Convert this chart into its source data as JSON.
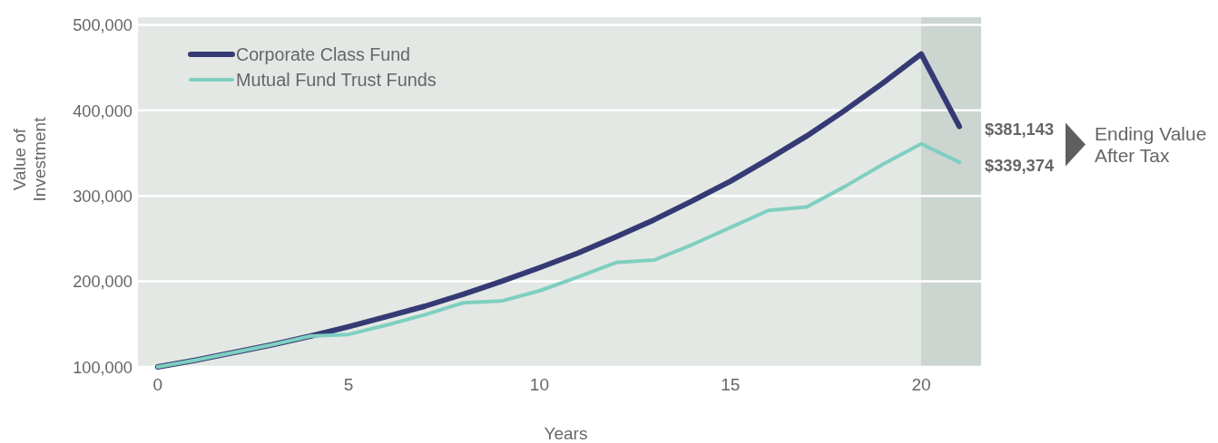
{
  "chart_data": {
    "type": "line",
    "xlabel": "Years",
    "ylabel": "Value of\nInvestment",
    "x": [
      0,
      1,
      2,
      3,
      4,
      5,
      6,
      7,
      8,
      9,
      10,
      11,
      12,
      13,
      14,
      15,
      16,
      17,
      18,
      19,
      20,
      21
    ],
    "series": [
      {
        "name": "Corporate Class Fund",
        "color": "#353a74",
        "values": [
          100000,
          108000,
          117000,
          126000,
          136000,
          147000,
          159000,
          171000,
          185000,
          200000,
          216000,
          233000,
          252000,
          272000,
          294000,
          317000,
          343000,
          370000,
          400000,
          432000,
          466000,
          381143
        ]
      },
      {
        "name": "Mutual Fund Trust Funds",
        "color": "#7fcfc0",
        "values": [
          100000,
          108000,
          117000,
          126000,
          136000,
          138000,
          149000,
          161000,
          175000,
          177000,
          189000,
          205000,
          222000,
          225000,
          243000,
          263000,
          283000,
          287000,
          311000,
          337000,
          361000,
          339374
        ]
      }
    ],
    "xlim": [
      -0.52,
      21.57
    ],
    "ylim": [
      100000,
      509000
    ],
    "xticks": [
      0,
      5,
      10,
      15,
      20
    ],
    "yticks": [
      {
        "value": 100000,
        "label": "100,000"
      },
      {
        "value": 200000,
        "label": "200,000"
      },
      {
        "value": 300000,
        "label": "300,000"
      },
      {
        "value": 400000,
        "label": "400,000"
      },
      {
        "value": 500000,
        "label": "500,000"
      }
    ],
    "grid": "y",
    "legend": "top left",
    "marker": "none",
    "line_style": "solid",
    "bands": [
      {
        "axis": "x",
        "from": 20,
        "to": 21.57,
        "color": "#ccd5d0"
      }
    ],
    "annotations": [
      {
        "text": "$381,143",
        "x": 21,
        "y": 381143
      },
      {
        "text": "$339,374",
        "x": 21,
        "y": 339374
      },
      "Ending Value\nAfter Tax"
    ]
  }
}
